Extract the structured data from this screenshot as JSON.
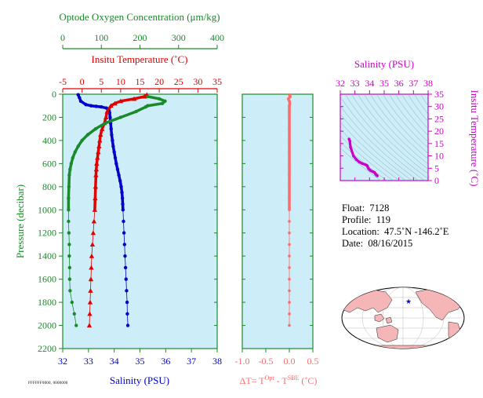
{
  "chart_data": [
    {
      "type": "line",
      "panel": "main",
      "axes": {
        "y": {
          "label": "Pressure (decibar)",
          "lim": [
            0,
            2200
          ],
          "ticks": [
            0,
            200,
            400,
            600,
            800,
            1000,
            1200,
            1400,
            1600,
            1800,
            2000,
            2200
          ],
          "inverted": true,
          "color": "#1a8a2a"
        },
        "x_bottom": {
          "label": "Salinity (PSU)",
          "lim": [
            32,
            38
          ],
          "ticks": [
            32,
            33,
            34,
            35,
            36,
            37,
            38
          ],
          "color": "#0000c8"
        },
        "x_temp": {
          "label": "Insitu Temperature (˚C)",
          "lim": [
            -5,
            35
          ],
          "ticks": [
            -5,
            0,
            5,
            10,
            15,
            20,
            25,
            30,
            35
          ],
          "color": "#e00000"
        },
        "x_oxy": {
          "label": "Optode Oxygen Concentration (μm/kg)",
          "lim": [
            0,
            400
          ],
          "ticks": [
            0,
            100,
            200,
            300,
            400
          ],
          "color": "#1a8a2a"
        }
      },
      "background": "#cdeef8",
      "series": [
        {
          "variable": "salinity",
          "color": "#0000c8",
          "axis": "x_bottom",
          "marker": "circle",
          "points": [
            [
              32.6,
              5
            ],
            [
              32.65,
              30
            ],
            [
              32.7,
              60
            ],
            [
              32.9,
              90
            ],
            [
              33.1,
              100
            ],
            [
              33.3,
              105
            ],
            [
              33.5,
              110
            ],
            [
              33.7,
              120
            ],
            [
              33.8,
              140
            ],
            [
              33.82,
              160
            ],
            [
              33.84,
              200
            ],
            [
              33.86,
              250
            ],
            [
              33.88,
              300
            ],
            [
              33.9,
              350
            ],
            [
              33.93,
              400
            ],
            [
              33.96,
              450
            ],
            [
              34.0,
              500
            ],
            [
              34.04,
              550
            ],
            [
              34.08,
              600
            ],
            [
              34.13,
              650
            ],
            [
              34.18,
              700
            ],
            [
              34.23,
              750
            ],
            [
              34.27,
              800
            ],
            [
              34.3,
              850
            ],
            [
              34.32,
              900
            ],
            [
              34.33,
              950
            ],
            [
              34.34,
              1000
            ],
            [
              34.36,
              1100
            ],
            [
              34.38,
              1200
            ],
            [
              34.4,
              1300
            ],
            [
              34.42,
              1400
            ],
            [
              34.44,
              1500
            ],
            [
              34.46,
              1600
            ],
            [
              34.48,
              1700
            ],
            [
              34.5,
              1800
            ],
            [
              34.51,
              1900
            ],
            [
              34.53,
              2000
            ]
          ]
        },
        {
          "variable": "temperature",
          "color": "#e00000",
          "axis": "x_temp",
          "marker": "triangle",
          "points": [
            [
              16.8,
              5
            ],
            [
              16.2,
              20
            ],
            [
              13.5,
              40
            ],
            [
              10.0,
              60
            ],
            [
              8.5,
              80
            ],
            [
              7.5,
              100
            ],
            [
              6.5,
              150
            ],
            [
              6.2,
              200
            ],
            [
              5.8,
              250
            ],
            [
              5.2,
              300
            ],
            [
              4.8,
              350
            ],
            [
              4.6,
              400
            ],
            [
              4.4,
              450
            ],
            [
              4.2,
              500
            ],
            [
              4.0,
              550
            ],
            [
              3.8,
              600
            ],
            [
              3.7,
              650
            ],
            [
              3.6,
              700
            ],
            [
              3.5,
              800
            ],
            [
              3.4,
              900
            ],
            [
              3.3,
              1000
            ],
            [
              3.1,
              1100
            ],
            [
              2.9,
              1200
            ],
            [
              2.7,
              1300
            ],
            [
              2.5,
              1400
            ],
            [
              2.4,
              1500
            ],
            [
              2.3,
              1600
            ],
            [
              2.2,
              1700
            ],
            [
              2.1,
              1800
            ],
            [
              2.0,
              1900
            ],
            [
              1.9,
              2000
            ]
          ]
        },
        {
          "variable": "oxygen",
          "color": "#1a8a2a",
          "axis": "x_oxy",
          "marker": "circle",
          "points": [
            [
              220,
              20
            ],
            [
              250,
              40
            ],
            [
              265,
              60
            ],
            [
              258,
              80
            ],
            [
              220,
              100
            ],
            [
              215,
              110
            ],
            [
              190,
              150
            ],
            [
              150,
              200
            ],
            [
              110,
              250
            ],
            [
              85,
              300
            ],
            [
              65,
              350
            ],
            [
              50,
              400
            ],
            [
              40,
              450
            ],
            [
              32,
              500
            ],
            [
              26,
              550
            ],
            [
              22,
              600
            ],
            [
              19,
              650
            ],
            [
              17,
              700
            ],
            [
              16,
              800
            ],
            [
              15,
              900
            ],
            [
              15,
              1000
            ],
            [
              15,
              1100
            ],
            [
              16,
              1200
            ],
            [
              17,
              1300
            ],
            [
              17,
              1400
            ],
            [
              18,
              1500
            ],
            [
              18,
              1600
            ],
            [
              19,
              1700
            ],
            [
              24,
              1800
            ],
            [
              30,
              1900
            ],
            [
              35,
              2000
            ]
          ]
        }
      ]
    },
    {
      "type": "line",
      "panel": "delta",
      "axes": {
        "x": {
          "label_parts": [
            "ΔT= T",
            "Opt",
            " - T",
            "SBE",
            " (˚C)"
          ],
          "lim": [
            -1.0,
            0.5
          ],
          "ticks": [
            -1.0,
            -0.5,
            0.0,
            0.5
          ],
          "tick_labels": [
            "-1.0",
            "-0.5",
            "0.0",
            "0.5"
          ],
          "color": "#ff6a6a"
        },
        "y": {
          "lim": [
            0,
            2200
          ],
          "inverted": true
        }
      },
      "background": "#cdeef8",
      "series": [
        {
          "variable": "delta_t",
          "color": "#ff6a6a",
          "marker": "circle",
          "points": [
            [
              0.0,
              5
            ],
            [
              0.02,
              20
            ],
            [
              -0.02,
              40
            ],
            [
              0.0,
              60
            ],
            [
              0.01,
              80
            ],
            [
              0.0,
              100
            ],
            [
              0.0,
              150
            ],
            [
              0.0,
              200
            ],
            [
              0.0,
              300
            ],
            [
              0.0,
              400
            ],
            [
              0.0,
              500
            ],
            [
              0.0,
              600
            ],
            [
              0.0,
              700
            ],
            [
              0.0,
              800
            ],
            [
              0.0,
              900
            ],
            [
              0.0,
              1000
            ],
            [
              0.0,
              1100
            ],
            [
              0.0,
              1200
            ],
            [
              0.0,
              1300
            ],
            [
              0.0,
              1400
            ],
            [
              0.0,
              1500
            ],
            [
              0.0,
              1600
            ],
            [
              0.0,
              1700
            ],
            [
              0.0,
              1800
            ],
            [
              0.0,
              1900
            ],
            [
              0.0,
              2000
            ]
          ]
        }
      ]
    },
    {
      "type": "scatter",
      "panel": "ts",
      "axes": {
        "x": {
          "label": "Salinity (PSU)",
          "lim": [
            32,
            38
          ],
          "ticks": [
            32,
            33,
            34,
            35,
            36,
            37,
            38
          ],
          "color": "#cc00cc"
        },
        "y": {
          "label": "Insitu Temperature (˚C)",
          "lim": [
            0,
            35
          ],
          "ticks": [
            0,
            5,
            10,
            15,
            20,
            25,
            30,
            35
          ],
          "color": "#cc00cc"
        }
      },
      "background": "#cdeef8",
      "series": [
        {
          "variable": "TS",
          "color": "#cc00cc",
          "points": [
            [
              32.6,
              16.8
            ],
            [
              32.65,
              16.0
            ],
            [
              32.7,
              13.5
            ],
            [
              32.9,
              10.0
            ],
            [
              33.1,
              8.5
            ],
            [
              33.3,
              7.5
            ],
            [
              33.5,
              6.9
            ],
            [
              33.7,
              6.5
            ],
            [
              33.8,
              6.2
            ],
            [
              33.84,
              6.0
            ],
            [
              33.88,
              5.4
            ],
            [
              33.93,
              4.8
            ],
            [
              34.0,
              4.4
            ],
            [
              34.08,
              4.0
            ],
            [
              34.18,
              3.7
            ],
            [
              34.27,
              3.5
            ],
            [
              34.33,
              3.3
            ],
            [
              34.38,
              2.9
            ],
            [
              34.42,
              2.5
            ],
            [
              34.46,
              2.3
            ],
            [
              34.5,
              2.1
            ],
            [
              34.53,
              1.9
            ]
          ]
        }
      ]
    }
  ],
  "info": {
    "float_label": "Float:",
    "float_value": "7128",
    "profile_label": "Profile:",
    "profile_value": "119",
    "location_label": "Location:",
    "location_value": "47.5˚N  -146.2˚E",
    "date_label": "Date:",
    "date_value": "08/16/2015"
  },
  "map": {
    "land_color": "#f4b6b6",
    "ocean_color": "#ffffff",
    "marker_color": "#0000ff",
    "marker_lat": 47.5,
    "marker_lon": -146.2
  },
  "stamp": "FFFFFF0000, 0000000"
}
